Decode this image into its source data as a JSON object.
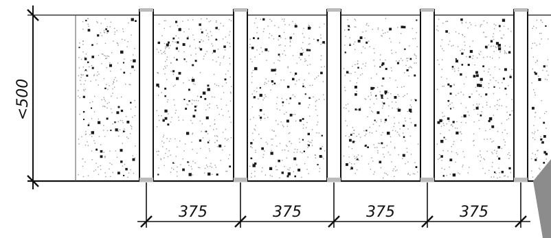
{
  "drawing": {
    "vertical_dimension": {
      "label": "<500"
    },
    "horizontal_dimensions": [
      {
        "label": "375"
      },
      {
        "label": "375"
      },
      {
        "label": "375"
      },
      {
        "label": "375"
      }
    ],
    "colors": {
      "line": "#111111",
      "concrete_speckle": "#9a9a9a",
      "concrete_dot": "#1a1a1a",
      "cap": "#bbbbbb",
      "corner_mark": "#8c8c8c"
    }
  }
}
